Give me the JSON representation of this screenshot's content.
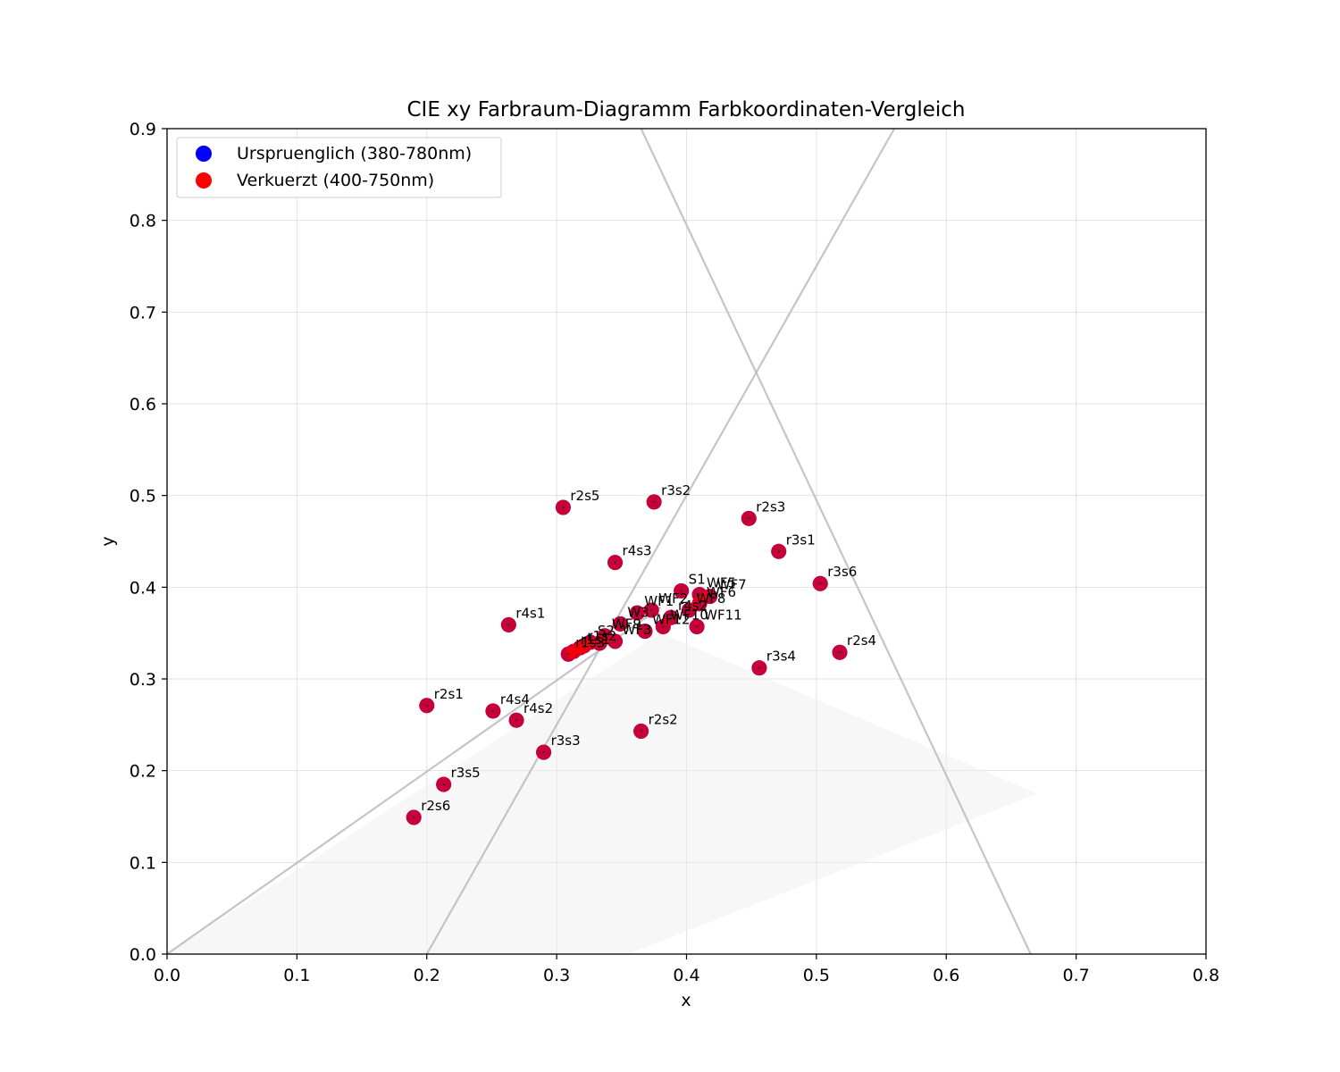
{
  "chart_data": {
    "type": "scatter",
    "title": "CIE xy Farbraum-Diagramm Farbkoordinaten-Vergleich",
    "xlabel": "x",
    "ylabel": "y",
    "xlim": [
      0.0,
      0.8
    ],
    "ylim": [
      0.0,
      0.9
    ],
    "x_ticks": [
      "0.0",
      "0.1",
      "0.2",
      "0.3",
      "0.4",
      "0.5",
      "0.6",
      "0.7",
      "0.8"
    ],
    "y_ticks": [
      "0.0",
      "0.1",
      "0.2",
      "0.3",
      "0.4",
      "0.5",
      "0.6",
      "0.7",
      "0.8",
      "0.9"
    ],
    "grid": true,
    "legend_position": "top-left",
    "colors": {
      "original": "#0000ff",
      "shortened": "#ff0000",
      "reference_lines": "#bbbbbb",
      "region_fill": "#eeeeee"
    },
    "series": [
      {
        "name": "Urspruenglich (380-780nm)",
        "color": "#0000ff"
      },
      {
        "name": "Verkuerzt (400-750nm)",
        "color": "#ff0000"
      }
    ],
    "reference_lines": [
      {
        "x": [
          0.0,
          0.38
        ],
        "y": [
          0.0,
          0.378
        ]
      },
      {
        "x": [
          0.2,
          0.56
        ],
        "y": [
          0.0,
          0.9
        ]
      },
      {
        "x": [
          0.365,
          0.665
        ],
        "y": [
          0.9,
          0.0
        ]
      }
    ],
    "region": {
      "x": [
        0.0,
        0.38,
        0.67,
        0.355
      ],
      "y": [
        0.0,
        0.35,
        0.175,
        0.0
      ]
    },
    "points": [
      {
        "label": "r2s5",
        "x": 0.305,
        "y": 0.487
      },
      {
        "label": "r3s2",
        "x": 0.375,
        "y": 0.493
      },
      {
        "label": "r2s3",
        "x": 0.448,
        "y": 0.475
      },
      {
        "label": "r3s1",
        "x": 0.471,
        "y": 0.439
      },
      {
        "label": "r4s3",
        "x": 0.345,
        "y": 0.427
      },
      {
        "label": "r3s6",
        "x": 0.503,
        "y": 0.404
      },
      {
        "label": "S1",
        "x": 0.396,
        "y": 0.396
      },
      {
        "label": "r4s1",
        "x": 0.263,
        "y": 0.359
      },
      {
        "label": "r2s4",
        "x": 0.518,
        "y": 0.329
      },
      {
        "label": "r3s4",
        "x": 0.456,
        "y": 0.312
      },
      {
        "label": "r2s1",
        "x": 0.2,
        "y": 0.271
      },
      {
        "label": "r4s4",
        "x": 0.251,
        "y": 0.265
      },
      {
        "label": "r4s2",
        "x": 0.269,
        "y": 0.255
      },
      {
        "label": "r2s2",
        "x": 0.365,
        "y": 0.243
      },
      {
        "label": "r3s3",
        "x": 0.29,
        "y": 0.22
      },
      {
        "label": "r3s5",
        "x": 0.213,
        "y": 0.185
      },
      {
        "label": "r2s6",
        "x": 0.19,
        "y": 0.149
      },
      {
        "label": "WF5",
        "x": 0.41,
        "y": 0.392
      },
      {
        "label": "WF7",
        "x": 0.418,
        "y": 0.39
      },
      {
        "label": "WF6",
        "x": 0.41,
        "y": 0.382
      },
      {
        "label": "WF8",
        "x": 0.402,
        "y": 0.375
      },
      {
        "label": "WF2",
        "x": 0.373,
        "y": 0.375
      },
      {
        "label": "WF1",
        "x": 0.362,
        "y": 0.372
      },
      {
        "label": "r4s2",
        "x": 0.388,
        "y": 0.367
      },
      {
        "label": "W3",
        "x": 0.349,
        "y": 0.36
      },
      {
        "label": "WF10",
        "x": 0.382,
        "y": 0.357
      },
      {
        "label": "WF11",
        "x": 0.408,
        "y": 0.357
      },
      {
        "label": "WF12",
        "x": 0.368,
        "y": 0.352
      },
      {
        "label": "WF9",
        "x": 0.337,
        "y": 0.347
      },
      {
        "label": "WF3",
        "x": 0.345,
        "y": 0.341
      },
      {
        "label": "S2",
        "x": 0.326,
        "y": 0.34
      },
      {
        "label": "r1s2",
        "x": 0.318,
        "y": 0.334
      },
      {
        "label": "r1s1",
        "x": 0.313,
        "y": 0.33
      },
      {
        "label": "r1s3",
        "x": 0.309,
        "y": 0.327
      },
      {
        "label": "",
        "x": 0.321,
        "y": 0.336
      },
      {
        "label": "",
        "x": 0.333,
        "y": 0.339
      }
    ]
  }
}
